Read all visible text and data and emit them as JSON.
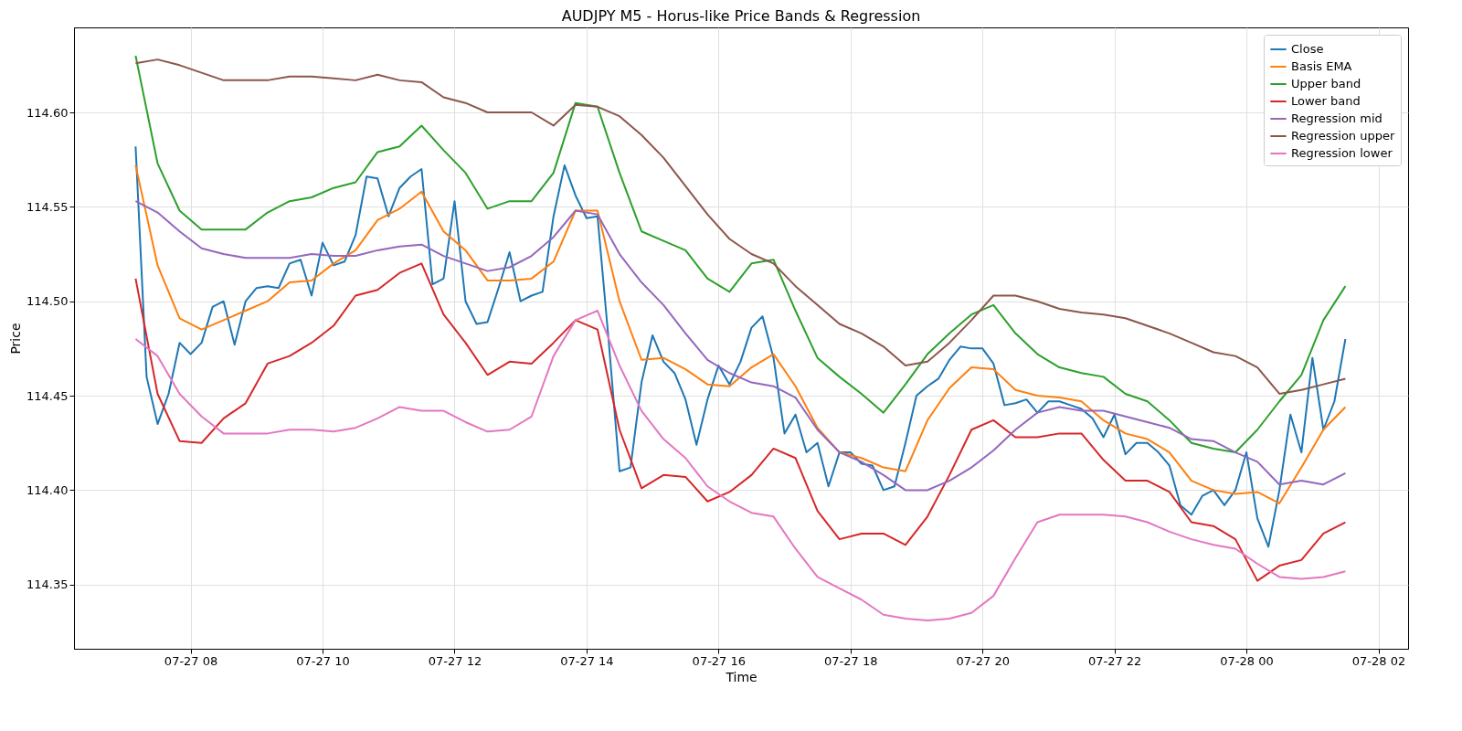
{
  "chart_data": {
    "type": "line",
    "title": "AUDJPY M5 - Horus-like Price Bands & Regression",
    "xlabel": "Time",
    "ylabel": "Price",
    "grid": true,
    "legend": "top right",
    "xlim": [
      "--07-27T06:14",
      "--07-28T02:27"
    ],
    "ylim": [
      114.316,
      114.645
    ],
    "xticks": [
      {
        "value": "--07-27T08:00",
        "label": "07-27 08"
      },
      {
        "value": "--07-27T10:00",
        "label": "07-27 10"
      },
      {
        "value": "--07-27T12:00",
        "label": "07-27 12"
      },
      {
        "value": "--07-27T14:00",
        "label": "07-27 14"
      },
      {
        "value": "--07-27T16:00",
        "label": "07-27 16"
      },
      {
        "value": "--07-27T18:00",
        "label": "07-27 18"
      },
      {
        "value": "--07-27T20:00",
        "label": "07-27 20"
      },
      {
        "value": "--07-27T22:00",
        "label": "07-27 22"
      },
      {
        "value": "--07-28T00:00",
        "label": "07-28 00"
      },
      {
        "value": "--07-28T02:00",
        "label": "07-28 02"
      }
    ],
    "yticks": [
      114.35,
      {
        "value": 114.4,
        "label": "114.40"
      },
      114.45,
      {
        "value": 114.5,
        "label": "114.50"
      },
      114.55,
      {
        "value": 114.6,
        "label": "114.60"
      }
    ],
    "x": [
      "--07-27T07:10",
      "--07-27T07:20",
      "--07-27T07:30",
      "--07-27T07:40",
      "--07-27T07:50",
      "--07-27T08:00",
      "--07-27T08:10",
      "--07-27T08:20",
      "--07-27T08:30",
      "--07-27T08:40",
      "--07-27T08:50",
      "--07-27T09:00",
      "--07-27T09:10",
      "--07-27T09:20",
      "--07-27T09:30",
      "--07-27T09:40",
      "--07-27T09:50",
      "--07-27T10:00",
      "--07-27T10:10",
      "--07-27T10:20",
      "--07-27T10:30",
      "--07-27T10:40",
      "--07-27T10:50",
      "--07-27T11:00",
      "--07-27T11:10",
      "--07-27T11:20",
      "--07-27T11:30",
      "--07-27T11:40",
      "--07-27T11:50",
      "--07-27T12:00",
      "--07-27T12:10",
      "--07-27T12:20",
      "--07-27T12:30",
      "--07-27T12:40",
      "--07-27T12:50",
      "--07-27T13:00",
      "--07-27T13:10",
      "--07-27T13:20",
      "--07-27T13:30",
      "--07-27T13:40",
      "--07-27T13:50",
      "--07-27T14:00",
      "--07-27T14:10",
      "--07-27T14:20",
      "--07-27T14:30",
      "--07-27T14:40",
      "--07-27T14:50",
      "--07-27T15:00",
      "--07-27T15:10",
      "--07-27T15:20",
      "--07-27T15:30",
      "--07-27T15:40",
      "--07-27T15:50",
      "--07-27T16:00",
      "--07-27T16:10",
      "--07-27T16:20",
      "--07-27T16:30",
      "--07-27T16:40",
      "--07-27T16:50",
      "--07-27T17:00",
      "--07-27T17:10",
      "--07-27T17:20",
      "--07-27T17:30",
      "--07-27T17:40",
      "--07-27T17:50",
      "--07-27T18:00",
      "--07-27T18:10",
      "--07-27T18:20",
      "--07-27T18:30",
      "--07-27T18:40",
      "--07-27T18:50",
      "--07-27T19:00",
      "--07-27T19:10",
      "--07-27T19:20",
      "--07-27T19:30",
      "--07-27T19:40",
      "--07-27T19:50",
      "--07-27T20:00",
      "--07-27T20:10",
      "--07-27T20:20",
      "--07-27T20:30",
      "--07-27T20:40",
      "--07-27T20:50",
      "--07-27T21:00",
      "--07-27T21:10",
      "--07-27T21:20",
      "--07-27T21:30",
      "--07-27T21:40",
      "--07-27T21:50",
      "--07-27T22:00",
      "--07-27T22:10",
      "--07-27T22:20",
      "--07-27T22:30",
      "--07-27T22:40",
      "--07-27T22:50",
      "--07-27T23:00",
      "--07-27T23:10",
      "--07-27T23:20",
      "--07-27T23:30",
      "--07-27T23:40",
      "--07-27T23:50",
      "--07-28T00:00",
      "--07-28T00:10",
      "--07-28T00:20",
      "--07-28T00:30",
      "--07-28T00:40",
      "--07-28T00:50",
      "--07-28T01:00",
      "--07-28T01:10",
      "--07-28T01:20",
      "--07-28T01:30"
    ],
    "series": [
      {
        "name": "Close",
        "color": "#1f77b4",
        "values": [
          114.582,
          114.46,
          114.435,
          114.451,
          114.478,
          114.472,
          114.478,
          114.497,
          114.5,
          114.477,
          114.5,
          114.507,
          114.508,
          114.507,
          114.52,
          114.522,
          114.503,
          114.531,
          114.519,
          114.521,
          114.535,
          114.566,
          114.565,
          114.545,
          114.56,
          114.566,
          114.57,
          114.509,
          114.512,
          114.553,
          114.5,
          114.488,
          114.489,
          114.507,
          114.526,
          114.5,
          114.503,
          114.505,
          114.545,
          114.572,
          114.556,
          114.544,
          114.545,
          114.48,
          114.41,
          114.412,
          114.457,
          114.482,
          114.468,
          114.462,
          114.448,
          114.424,
          114.448,
          114.466,
          114.456,
          114.468,
          114.486,
          114.492,
          114.47,
          114.43,
          114.44,
          114.42,
          114.425,
          114.402,
          114.42,
          114.42,
          114.414,
          114.413,
          114.4,
          114.402,
          114.425,
          114.45,
          114.455,
          114.459,
          114.469,
          114.476,
          114.475,
          114.475,
          114.467,
          114.445,
          114.446,
          114.448,
          114.441,
          114.447,
          114.447,
          114.445,
          114.443,
          114.438,
          114.428,
          114.44,
          114.419,
          114.425,
          114.425,
          114.42,
          114.413,
          114.392,
          114.387,
          114.397,
          114.4,
          114.392,
          114.4,
          114.42,
          114.385,
          114.37,
          114.4,
          114.44,
          114.42,
          114.47,
          114.432,
          114.447,
          114.48
        ]
      },
      {
        "name": "Basis EMA",
        "color": "#ff7f0e",
        "x": [
          "--07-27T07:10",
          "--07-27T07:30",
          "--07-27T07:50",
          "--07-27T08:10",
          "--07-27T08:30",
          "--07-27T08:50",
          "--07-27T09:10",
          "--07-27T09:30",
          "--07-27T09:50",
          "--07-27T10:10",
          "--07-27T10:30",
          "--07-27T10:50",
          "--07-27T11:10",
          "--07-27T11:30",
          "--07-27T11:50",
          "--07-27T12:10",
          "--07-27T12:30",
          "--07-27T12:50",
          "--07-27T13:10",
          "--07-27T13:30",
          "--07-27T13:50",
          "--07-27T14:10",
          "--07-27T14:30",
          "--07-27T14:50",
          "--07-27T15:10",
          "--07-27T15:30",
          "--07-27T15:50",
          "--07-27T16:10",
          "--07-27T16:30",
          "--07-27T16:50",
          "--07-27T17:10",
          "--07-27T17:30",
          "--07-27T17:50",
          "--07-27T18:10",
          "--07-27T18:30",
          "--07-27T18:50",
          "--07-27T19:10",
          "--07-27T19:30",
          "--07-27T19:50",
          "--07-27T20:10",
          "--07-27T20:30",
          "--07-27T20:50",
          "--07-27T21:10",
          "--07-27T21:30",
          "--07-27T21:50",
          "--07-27T22:10",
          "--07-27T22:30",
          "--07-27T22:50",
          "--07-27T23:10",
          "--07-27T23:30",
          "--07-27T23:50",
          "--07-28T00:10",
          "--07-28T00:30",
          "--07-28T00:50",
          "--07-28T01:10",
          "--07-28T01:30"
        ],
        "values": [
          114.572,
          114.519,
          114.491,
          114.485,
          114.49,
          114.495,
          114.5,
          114.51,
          114.511,
          114.52,
          114.527,
          114.543,
          114.549,
          114.558,
          114.537,
          114.527,
          114.511,
          114.511,
          114.512,
          114.521,
          114.548,
          114.548,
          114.5,
          114.469,
          114.47,
          114.464,
          114.456,
          114.455,
          114.465,
          114.472,
          114.455,
          114.433,
          114.42,
          114.417,
          114.412,
          114.41,
          114.437,
          114.454,
          114.465,
          114.464,
          114.453,
          114.45,
          114.449,
          114.447,
          114.437,
          114.43,
          114.427,
          114.42,
          114.405,
          114.4,
          114.398,
          114.399,
          114.393,
          114.412,
          114.432,
          114.444
        ]
      },
      {
        "name": "Upper band",
        "color": "#2ca02c",
        "x": [
          "--07-27T07:10",
          "--07-27T07:30",
          "--07-27T07:50",
          "--07-27T08:10",
          "--07-27T08:30",
          "--07-27T08:50",
          "--07-27T09:10",
          "--07-27T09:30",
          "--07-27T09:50",
          "--07-27T10:10",
          "--07-27T10:30",
          "--07-27T10:50",
          "--07-27T11:10",
          "--07-27T11:30",
          "--07-27T11:50",
          "--07-27T12:10",
          "--07-27T12:30",
          "--07-27T12:50",
          "--07-27T13:10",
          "--07-27T13:30",
          "--07-27T13:50",
          "--07-27T14:10",
          "--07-27T14:30",
          "--07-27T14:50",
          "--07-27T15:10",
          "--07-27T15:30",
          "--07-27T15:50",
          "--07-27T16:10",
          "--07-27T16:30",
          "--07-27T16:50",
          "--07-27T17:10",
          "--07-27T17:30",
          "--07-27T17:50",
          "--07-27T18:10",
          "--07-27T18:30",
          "--07-27T18:50",
          "--07-27T19:10",
          "--07-27T19:30",
          "--07-27T19:50",
          "--07-27T20:10",
          "--07-27T20:30",
          "--07-27T20:50",
          "--07-27T21:10",
          "--07-27T21:30",
          "--07-27T21:50",
          "--07-27T22:10",
          "--07-27T22:30",
          "--07-27T22:50",
          "--07-27T23:10",
          "--07-27T23:30",
          "--07-27T23:50",
          "--07-28T00:10",
          "--07-28T00:30",
          "--07-28T00:50",
          "--07-28T01:10",
          "--07-28T01:30"
        ],
        "values": [
          114.63,
          114.573,
          114.548,
          114.538,
          114.538,
          114.538,
          114.547,
          114.553,
          114.555,
          114.56,
          114.563,
          114.579,
          114.582,
          114.593,
          114.58,
          114.568,
          114.549,
          114.553,
          114.553,
          114.568,
          114.605,
          114.603,
          114.568,
          114.537,
          114.532,
          114.527,
          114.512,
          114.505,
          114.52,
          114.522,
          114.495,
          114.47,
          114.46,
          114.451,
          114.441,
          114.456,
          114.472,
          114.483,
          114.493,
          114.498,
          114.483,
          114.472,
          114.465,
          114.462,
          114.46,
          114.451,
          114.447,
          114.437,
          114.425,
          114.422,
          114.42,
          114.432,
          114.447,
          114.461,
          114.49,
          114.508
        ]
      },
      {
        "name": "Lower band",
        "color": "#d62728",
        "x": [
          "--07-27T07:10",
          "--07-27T07:30",
          "--07-27T07:50",
          "--07-27T08:10",
          "--07-27T08:30",
          "--07-27T08:50",
          "--07-27T09:10",
          "--07-27T09:30",
          "--07-27T09:50",
          "--07-27T10:10",
          "--07-27T10:30",
          "--07-27T10:50",
          "--07-27T11:10",
          "--07-27T11:30",
          "--07-27T11:50",
          "--07-27T12:10",
          "--07-27T12:30",
          "--07-27T12:50",
          "--07-27T13:10",
          "--07-27T13:30",
          "--07-27T13:50",
          "--07-27T14:10",
          "--07-27T14:30",
          "--07-27T14:50",
          "--07-27T15:10",
          "--07-27T15:30",
          "--07-27T15:50",
          "--07-27T16:10",
          "--07-27T16:30",
          "--07-27T16:50",
          "--07-27T17:10",
          "--07-27T17:30",
          "--07-27T17:50",
          "--07-27T18:10",
          "--07-27T18:30",
          "--07-27T18:50",
          "--07-27T19:10",
          "--07-27T19:30",
          "--07-27T19:50",
          "--07-27T20:10",
          "--07-27T20:30",
          "--07-27T20:50",
          "--07-27T21:10",
          "--07-27T21:30",
          "--07-27T21:50",
          "--07-27T22:10",
          "--07-27T22:30",
          "--07-27T22:50",
          "--07-27T23:10",
          "--07-27T23:30",
          "--07-27T23:50",
          "--07-28T00:10",
          "--07-28T00:30",
          "--07-28T00:50",
          "--07-28T01:10",
          "--07-28T01:30"
        ],
        "values": [
          114.512,
          114.451,
          114.426,
          114.425,
          114.438,
          114.446,
          114.467,
          114.471,
          114.478,
          114.487,
          114.503,
          114.506,
          114.515,
          114.52,
          114.493,
          114.478,
          114.461,
          114.468,
          114.467,
          114.478,
          114.49,
          114.485,
          114.432,
          114.401,
          114.408,
          114.407,
          114.394,
          114.399,
          114.408,
          114.422,
          114.417,
          114.389,
          114.374,
          114.377,
          114.377,
          114.371,
          114.386,
          114.408,
          114.432,
          114.437,
          114.428,
          114.428,
          114.43,
          114.43,
          114.416,
          114.405,
          114.405,
          114.399,
          114.383,
          114.381,
          114.374,
          114.352,
          114.36,
          114.363,
          114.377,
          114.383
        ]
      },
      {
        "name": "Regression mid",
        "color": "#9467bd",
        "x": [
          "--07-27T07:10",
          "--07-27T07:30",
          "--07-27T07:50",
          "--07-27T08:10",
          "--07-27T08:30",
          "--07-27T08:50",
          "--07-27T09:10",
          "--07-27T09:30",
          "--07-27T09:50",
          "--07-27T10:10",
          "--07-27T10:30",
          "--07-27T10:50",
          "--07-27T11:10",
          "--07-27T11:30",
          "--07-27T11:50",
          "--07-27T12:10",
          "--07-27T12:30",
          "--07-27T12:50",
          "--07-27T13:10",
          "--07-27T13:30",
          "--07-27T13:50",
          "--07-27T14:10",
          "--07-27T14:30",
          "--07-27T14:50",
          "--07-27T15:10",
          "--07-27T15:30",
          "--07-27T15:50",
          "--07-27T16:10",
          "--07-27T16:30",
          "--07-27T16:50",
          "--07-27T17:10",
          "--07-27T17:30",
          "--07-27T17:50",
          "--07-27T18:10",
          "--07-27T18:30",
          "--07-27T18:50",
          "--07-27T19:10",
          "--07-27T19:30",
          "--07-27T19:50",
          "--07-27T20:10",
          "--07-27T20:30",
          "--07-27T20:50",
          "--07-27T21:10",
          "--07-27T21:30",
          "--07-27T21:50",
          "--07-27T22:10",
          "--07-27T22:30",
          "--07-27T22:50",
          "--07-27T23:10",
          "--07-27T23:30",
          "--07-27T23:50",
          "--07-28T00:10",
          "--07-28T00:30",
          "--07-28T00:50",
          "--07-28T01:10",
          "--07-28T01:30"
        ],
        "values": [
          114.553,
          114.547,
          114.537,
          114.528,
          114.525,
          114.523,
          114.523,
          114.523,
          114.525,
          114.524,
          114.524,
          114.527,
          114.529,
          114.53,
          114.524,
          114.52,
          114.516,
          114.518,
          114.524,
          114.534,
          114.548,
          114.546,
          114.525,
          114.51,
          114.498,
          114.483,
          114.469,
          114.462,
          114.457,
          114.455,
          114.449,
          114.432,
          114.42,
          114.415,
          114.408,
          114.4,
          114.4,
          114.405,
          114.412,
          114.421,
          114.432,
          114.441,
          114.444,
          114.442,
          114.442,
          114.439,
          114.436,
          114.433,
          114.427,
          114.426,
          114.42,
          114.415,
          114.403,
          114.405,
          114.403,
          114.409
        ]
      },
      {
        "name": "Regression upper",
        "color": "#8c564b",
        "x": [
          "--07-27T07:10",
          "--07-27T07:30",
          "--07-27T07:50",
          "--07-27T08:10",
          "--07-27T08:30",
          "--07-27T08:50",
          "--07-27T09:10",
          "--07-27T09:30",
          "--07-27T09:50",
          "--07-27T10:10",
          "--07-27T10:30",
          "--07-27T10:50",
          "--07-27T11:10",
          "--07-27T11:30",
          "--07-27T11:50",
          "--07-27T12:10",
          "--07-27T12:30",
          "--07-27T12:50",
          "--07-27T13:10",
          "--07-27T13:30",
          "--07-27T13:50",
          "--07-27T14:10",
          "--07-27T14:30",
          "--07-27T14:50",
          "--07-27T15:10",
          "--07-27T15:30",
          "--07-27T15:50",
          "--07-27T16:10",
          "--07-27T16:30",
          "--07-27T16:50",
          "--07-27T17:10",
          "--07-27T17:30",
          "--07-27T17:50",
          "--07-27T18:10",
          "--07-27T18:30",
          "--07-27T18:50",
          "--07-27T19:10",
          "--07-27T19:30",
          "--07-27T19:50",
          "--07-27T20:10",
          "--07-27T20:30",
          "--07-27T20:50",
          "--07-27T21:10",
          "--07-27T21:30",
          "--07-27T21:50",
          "--07-27T22:10",
          "--07-27T22:30",
          "--07-27T22:50",
          "--07-27T23:10",
          "--07-27T23:30",
          "--07-27T23:50",
          "--07-28T00:10",
          "--07-28T00:30",
          "--07-28T00:50",
          "--07-28T01:10",
          "--07-28T01:30"
        ],
        "values": [
          114.626,
          114.628,
          114.625,
          114.621,
          114.617,
          114.617,
          114.617,
          114.619,
          114.619,
          114.618,
          114.617,
          114.62,
          114.617,
          114.616,
          114.608,
          114.605,
          114.6,
          114.6,
          114.6,
          114.593,
          114.604,
          114.603,
          114.598,
          114.588,
          114.576,
          114.561,
          114.546,
          114.533,
          114.525,
          114.52,
          114.508,
          114.498,
          114.488,
          114.483,
          114.476,
          114.466,
          114.468,
          114.478,
          114.49,
          114.503,
          114.503,
          114.5,
          114.496,
          114.494,
          114.493,
          114.491,
          114.487,
          114.483,
          114.478,
          114.473,
          114.471,
          114.465,
          114.451,
          114.453,
          114.456,
          114.459
        ]
      },
      {
        "name": "Regression lower",
        "color": "#e377c2",
        "x": [
          "--07-27T07:10",
          "--07-27T07:30",
          "--07-27T07:50",
          "--07-27T08:10",
          "--07-27T08:30",
          "--07-27T08:50",
          "--07-27T09:10",
          "--07-27T09:30",
          "--07-27T09:50",
          "--07-27T10:10",
          "--07-27T10:30",
          "--07-27T10:50",
          "--07-27T11:10",
          "--07-27T11:30",
          "--07-27T11:50",
          "--07-27T12:10",
          "--07-27T12:30",
          "--07-27T12:50",
          "--07-27T13:10",
          "--07-27T13:30",
          "--07-27T13:50",
          "--07-27T14:10",
          "--07-27T14:30",
          "--07-27T14:50",
          "--07-27T15:10",
          "--07-27T15:30",
          "--07-27T15:50",
          "--07-27T16:10",
          "--07-27T16:30",
          "--07-27T16:50",
          "--07-27T17:10",
          "--07-27T17:30",
          "--07-27T17:50",
          "--07-27T18:10",
          "--07-27T18:30",
          "--07-27T18:50",
          "--07-27T19:10",
          "--07-27T19:30",
          "--07-27T19:50",
          "--07-27T20:10",
          "--07-27T20:30",
          "--07-27T20:50",
          "--07-27T21:10",
          "--07-27T21:30",
          "--07-27T21:50",
          "--07-27T22:10",
          "--07-27T22:30",
          "--07-27T22:50",
          "--07-27T23:10",
          "--07-27T23:30",
          "--07-27T23:50",
          "--07-28T00:10",
          "--07-28T00:30",
          "--07-28T00:50",
          "--07-28T01:10",
          "--07-28T01:30"
        ],
        "values": [
          114.48,
          114.471,
          114.451,
          114.439,
          114.43,
          114.43,
          114.43,
          114.432,
          114.432,
          114.431,
          114.433,
          114.438,
          114.444,
          114.442,
          114.442,
          114.436,
          114.431,
          114.432,
          114.439,
          114.471,
          114.49,
          114.495,
          114.466,
          114.442,
          114.427,
          114.417,
          114.402,
          114.394,
          114.388,
          114.386,
          114.369,
          114.354,
          114.348,
          114.342,
          114.334,
          114.332,
          114.331,
          114.332,
          114.335,
          114.344,
          114.364,
          114.383,
          114.387,
          114.387,
          114.387,
          114.386,
          114.383,
          114.378,
          114.374,
          114.371,
          114.369,
          114.361,
          114.354,
          114.353,
          114.354,
          114.357
        ]
      }
    ]
  }
}
